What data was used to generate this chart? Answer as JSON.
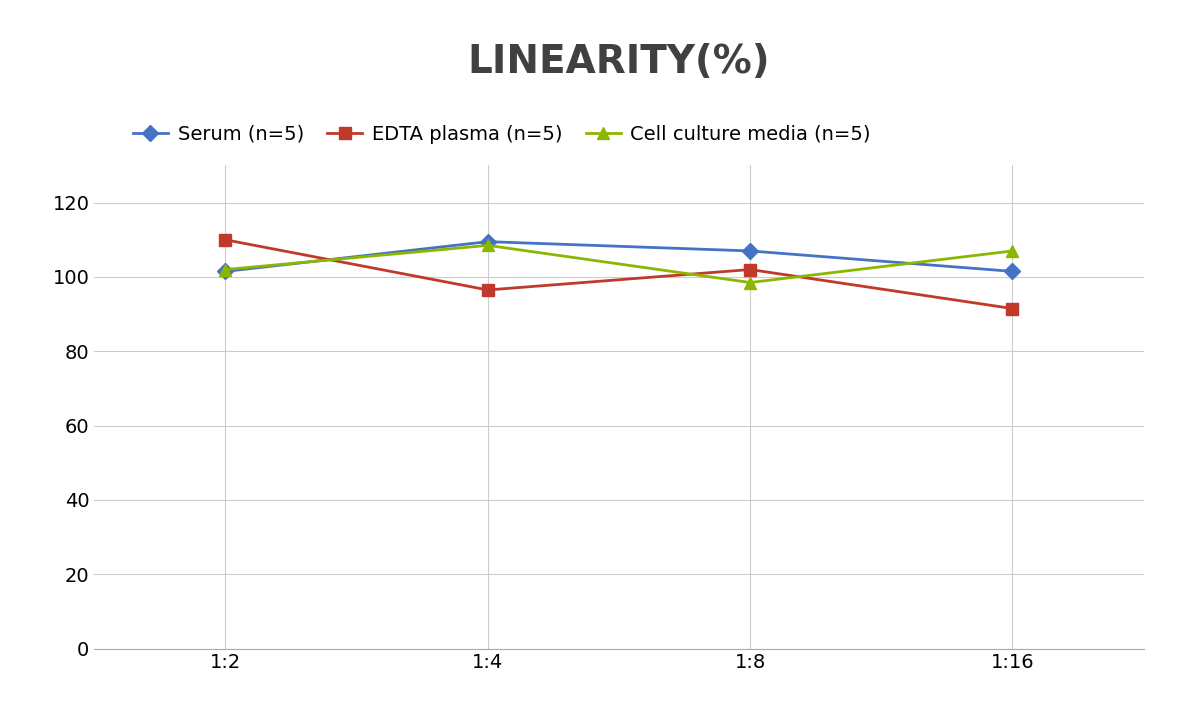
{
  "title": "LINEARITY(%)",
  "title_fontsize": 28,
  "title_fontweight": "bold",
  "title_color": "#404040",
  "x_labels": [
    "1:2",
    "1:4",
    "1:8",
    "1:16"
  ],
  "x_positions": [
    0,
    1,
    2,
    3
  ],
  "series": [
    {
      "label": "Serum (n=5)",
      "values": [
        101.5,
        109.5,
        107.0,
        101.5
      ],
      "color": "#4472C4",
      "marker": "D",
      "marker_size": 8,
      "linewidth": 2.0
    },
    {
      "label": "EDTA plasma (n=5)",
      "values": [
        110.0,
        96.5,
        102.0,
        91.5
      ],
      "color": "#C0392B",
      "marker": "s",
      "marker_size": 8,
      "linewidth": 2.0
    },
    {
      "label": "Cell culture media (n=5)",
      "values": [
        102.0,
        108.5,
        98.5,
        107.0
      ],
      "color": "#8DB600",
      "marker": "^",
      "marker_size": 8,
      "linewidth": 2.0
    }
  ],
  "ylim": [
    0,
    130
  ],
  "yticks": [
    0,
    20,
    40,
    60,
    80,
    100,
    120
  ],
  "grid_color": "#CCCCCC",
  "grid_linewidth": 0.8,
  "background_color": "#FFFFFF",
  "legend_fontsize": 14,
  "tick_fontsize": 14,
  "figsize": [
    11.79,
    7.05
  ],
  "dpi": 100
}
